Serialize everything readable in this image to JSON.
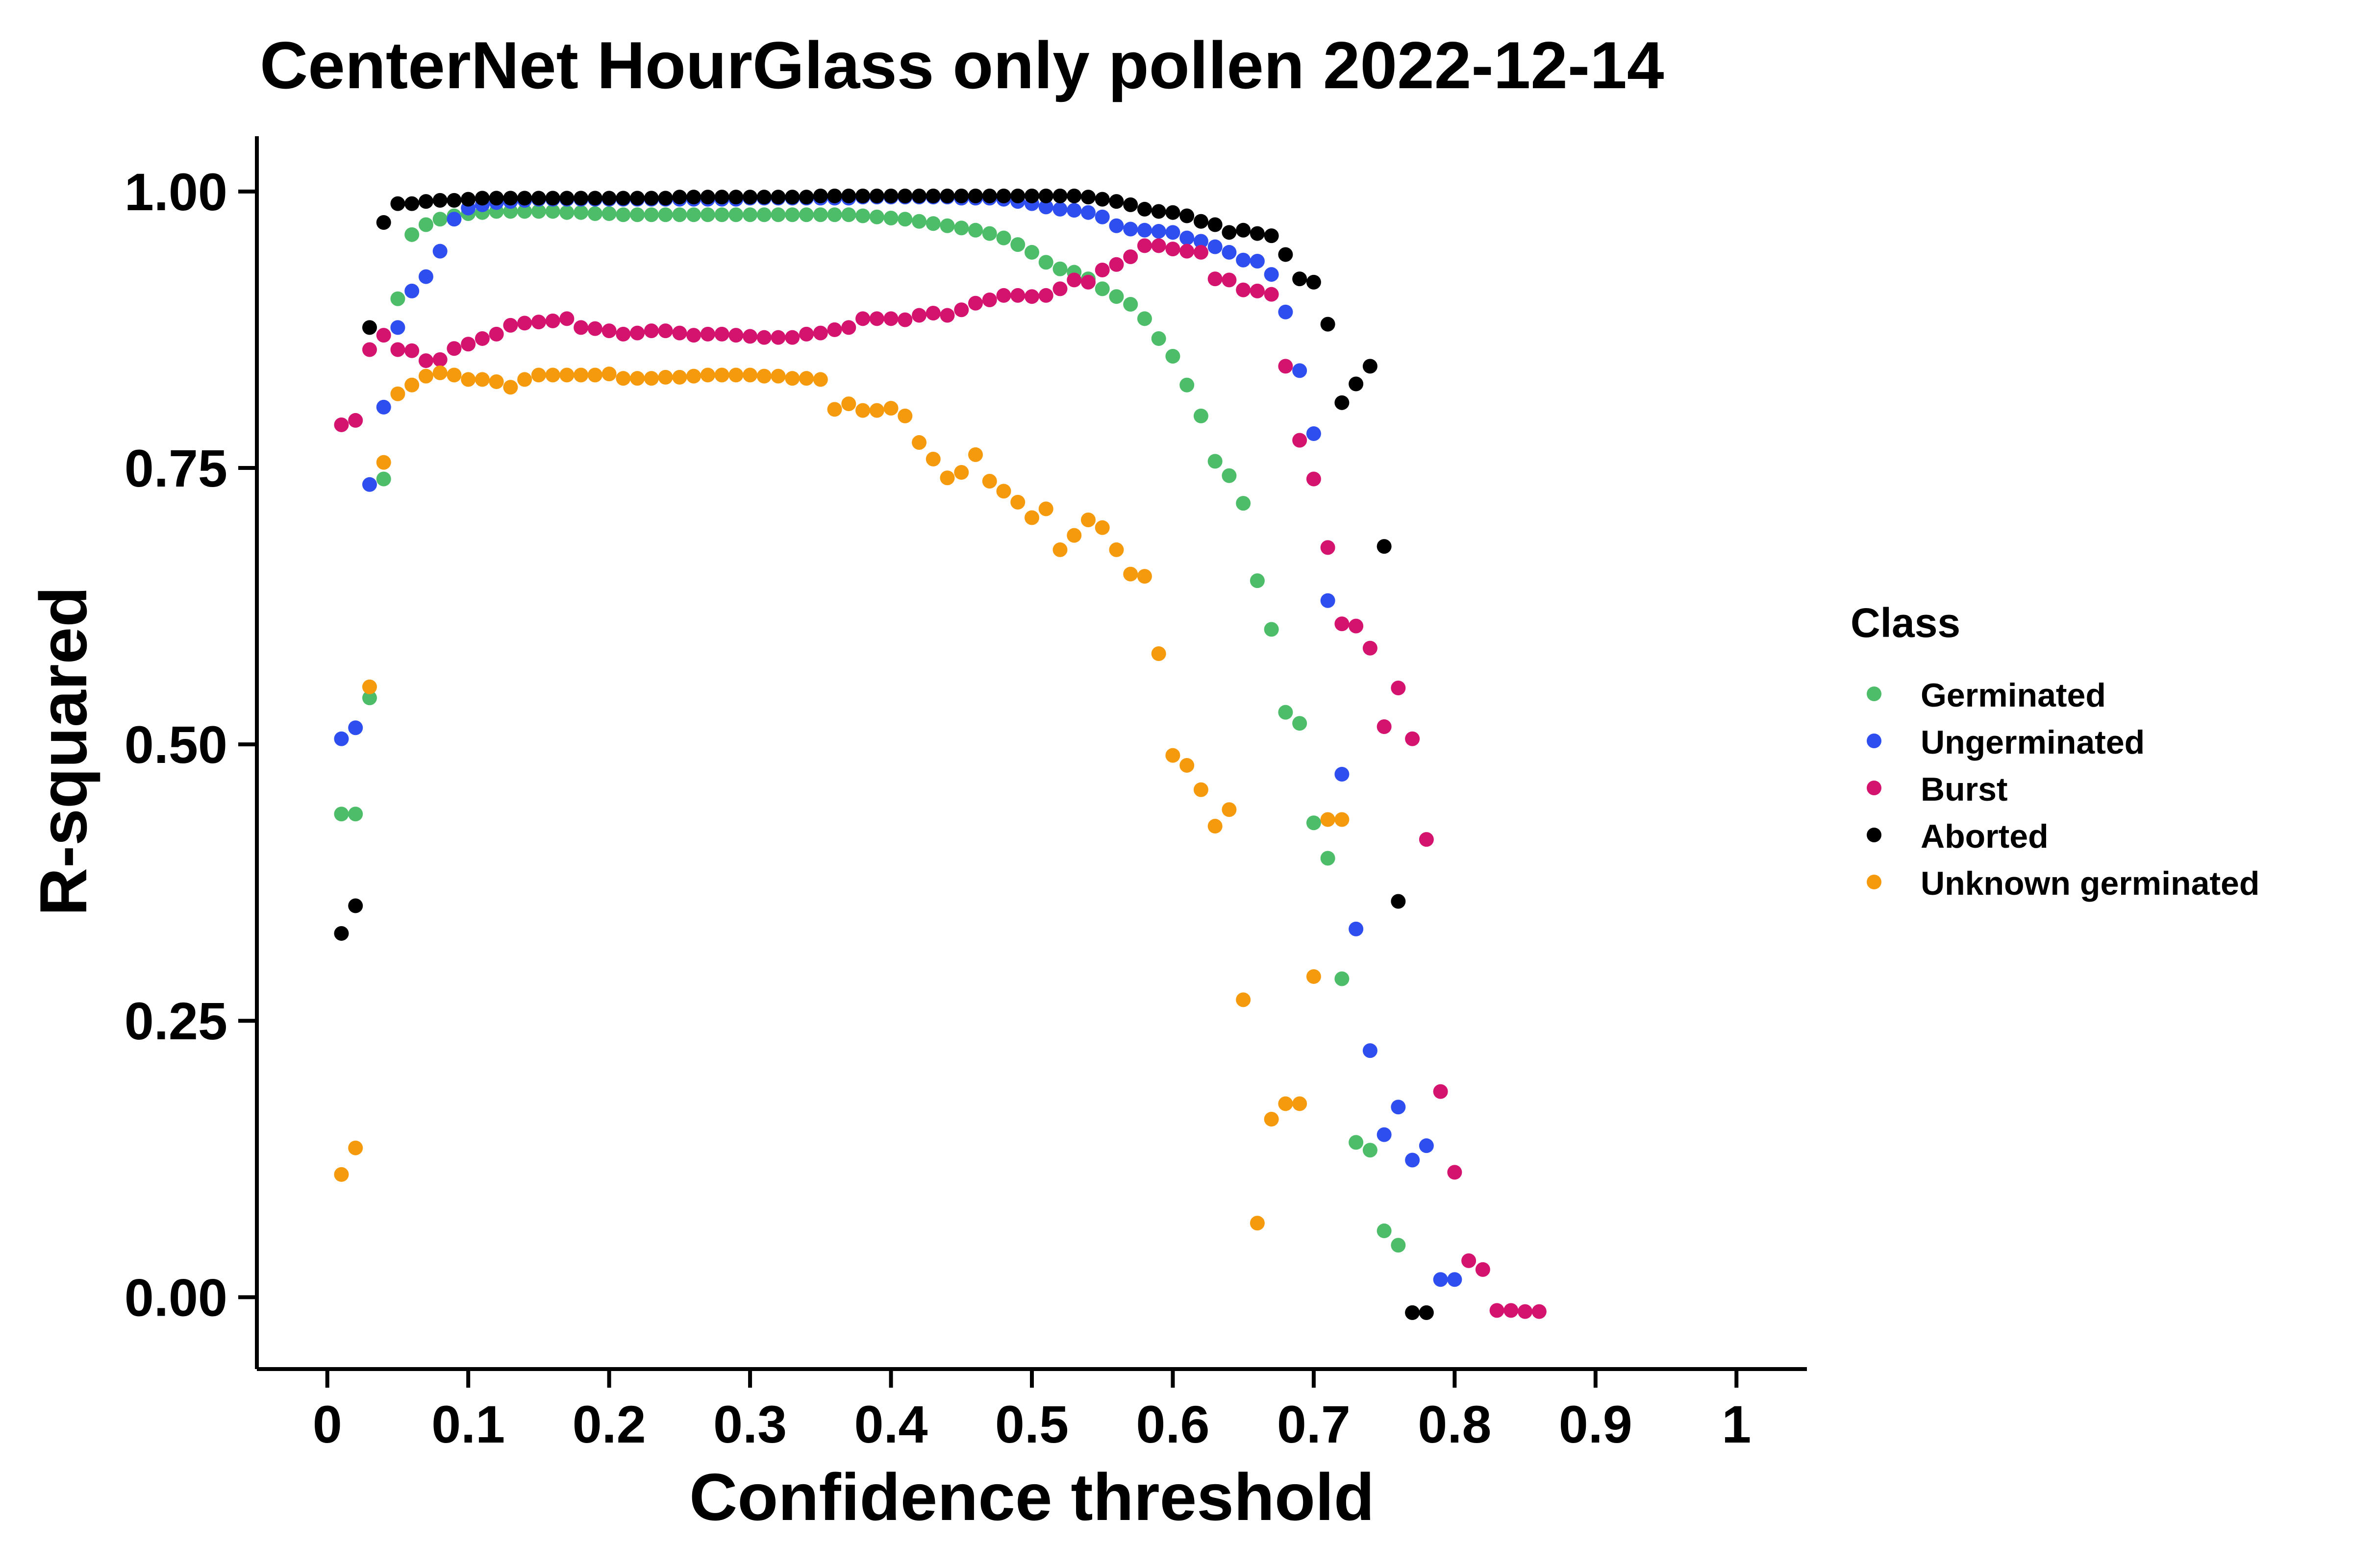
{
  "chart_data": {
    "type": "scatter",
    "title": "CenterNet HourGlass only pollen 2022-12-14",
    "xlabel": "Confidence threshold",
    "ylabel": "R-squared",
    "xlim": [
      -0.05,
      1.05
    ],
    "ylim": [
      -0.065,
      1.05
    ],
    "xticks": [
      0,
      0.1,
      0.2,
      0.3,
      0.4,
      0.5,
      0.6,
      0.7,
      0.8,
      0.9,
      1
    ],
    "xtick_labels": [
      "0",
      "0.1",
      "0.2",
      "0.3",
      "0.4",
      "0.5",
      "0.6",
      "0.7",
      "0.8",
      "0.9",
      "1"
    ],
    "yticks": [
      0,
      0.25,
      0.5,
      0.75,
      1
    ],
    "ytick_labels": [
      "0.00",
      "0.25",
      "0.50",
      "0.75",
      "1.00"
    ],
    "grid": false,
    "legend": {
      "title": "Class",
      "position": "right"
    },
    "series": [
      {
        "name": "Germinated",
        "color": "#4dbd6a",
        "x": [
          0.01,
          0.02,
          0.03,
          0.04,
          0.05,
          0.06,
          0.07,
          0.08,
          0.09,
          0.1,
          0.11,
          0.12,
          0.13,
          0.14,
          0.15,
          0.16,
          0.17,
          0.18,
          0.19,
          0.2,
          0.21,
          0.22,
          0.23,
          0.24,
          0.25,
          0.26,
          0.27,
          0.28,
          0.29,
          0.3,
          0.31,
          0.32,
          0.33,
          0.34,
          0.35,
          0.36,
          0.37,
          0.38,
          0.39,
          0.4,
          0.41,
          0.42,
          0.43,
          0.44,
          0.45,
          0.46,
          0.47,
          0.48,
          0.49,
          0.5,
          0.51,
          0.52,
          0.53,
          0.54,
          0.55,
          0.56,
          0.57,
          0.58,
          0.59,
          0.6,
          0.61,
          0.62,
          0.63,
          0.64,
          0.65,
          0.66,
          0.67,
          0.68,
          0.69,
          0.7,
          0.71,
          0.72,
          0.73,
          0.74,
          0.75,
          0.76,
          0.77
        ],
        "y": [
          0.437,
          0.437,
          0.542,
          0.74,
          0.903,
          0.961,
          0.97,
          0.975,
          0.978,
          0.98,
          0.981,
          0.982,
          0.982,
          0.982,
          0.982,
          0.982,
          0.981,
          0.981,
          0.98,
          0.98,
          0.979,
          0.979,
          0.979,
          0.979,
          0.979,
          0.979,
          0.979,
          0.979,
          0.979,
          0.979,
          0.979,
          0.979,
          0.979,
          0.979,
          0.979,
          0.979,
          0.979,
          0.978,
          0.977,
          0.976,
          0.975,
          0.973,
          0.971,
          0.969,
          0.967,
          0.965,
          0.962,
          0.958,
          0.952,
          0.945,
          0.936,
          0.93,
          0.927,
          0.921,
          0.912,
          0.905,
          0.898,
          0.885,
          0.867,
          0.851,
          0.825,
          0.797,
          0.756,
          0.743,
          0.718,
          0.648,
          0.604,
          0.529,
          0.519,
          0.429,
          0.397,
          0.288,
          0.14,
          0.133,
          0.06,
          0.047,
          -0.014
        ]
      },
      {
        "name": "Ungerminated",
        "color": "#2f4ef0",
        "x": [
          0.01,
          0.02,
          0.03,
          0.04,
          0.05,
          0.06,
          0.07,
          0.08,
          0.09,
          0.1,
          0.11,
          0.12,
          0.13,
          0.14,
          0.15,
          0.16,
          0.17,
          0.18,
          0.19,
          0.2,
          0.21,
          0.22,
          0.23,
          0.24,
          0.25,
          0.26,
          0.27,
          0.28,
          0.29,
          0.3,
          0.31,
          0.32,
          0.33,
          0.34,
          0.35,
          0.36,
          0.37,
          0.38,
          0.39,
          0.4,
          0.41,
          0.42,
          0.43,
          0.44,
          0.45,
          0.46,
          0.47,
          0.48,
          0.49,
          0.5,
          0.51,
          0.52,
          0.53,
          0.54,
          0.55,
          0.56,
          0.57,
          0.58,
          0.59,
          0.6,
          0.61,
          0.62,
          0.63,
          0.64,
          0.65,
          0.66,
          0.67,
          0.68,
          0.69,
          0.7,
          0.71,
          0.72,
          0.73,
          0.74,
          0.75,
          0.76,
          0.77,
          0.78,
          0.79,
          0.8
        ],
        "y": [
          0.505,
          0.515,
          0.735,
          0.805,
          0.877,
          0.91,
          0.923,
          0.946,
          0.975,
          0.985,
          0.988,
          0.99,
          0.991,
          0.992,
          0.993,
          0.993,
          0.993,
          0.993,
          0.993,
          0.993,
          0.993,
          0.993,
          0.993,
          0.993,
          0.993,
          0.993,
          0.993,
          0.993,
          0.993,
          0.994,
          0.994,
          0.994,
          0.994,
          0.994,
          0.994,
          0.994,
          0.994,
          0.995,
          0.995,
          0.995,
          0.995,
          0.995,
          0.995,
          0.995,
          0.994,
          0.994,
          0.994,
          0.993,
          0.991,
          0.989,
          0.986,
          0.984,
          0.983,
          0.981,
          0.977,
          0.969,
          0.966,
          0.965,
          0.964,
          0.963,
          0.958,
          0.955,
          0.95,
          0.945,
          0.938,
          0.937,
          0.925,
          0.891,
          0.838,
          0.781,
          0.63,
          0.473,
          0.333,
          0.223,
          0.147,
          0.172,
          0.124,
          0.137,
          0.016,
          0.016
        ]
      },
      {
        "name": "Burst",
        "color": "#d4136f",
        "x": [
          0.01,
          0.02,
          0.03,
          0.04,
          0.05,
          0.06,
          0.07,
          0.08,
          0.09,
          0.1,
          0.11,
          0.12,
          0.13,
          0.14,
          0.15,
          0.16,
          0.17,
          0.18,
          0.19,
          0.2,
          0.21,
          0.22,
          0.23,
          0.24,
          0.25,
          0.26,
          0.27,
          0.28,
          0.29,
          0.3,
          0.31,
          0.32,
          0.33,
          0.34,
          0.35,
          0.36,
          0.37,
          0.38,
          0.39,
          0.4,
          0.41,
          0.42,
          0.43,
          0.44,
          0.45,
          0.46,
          0.47,
          0.48,
          0.49,
          0.5,
          0.51,
          0.52,
          0.53,
          0.54,
          0.55,
          0.56,
          0.57,
          0.58,
          0.59,
          0.6,
          0.61,
          0.62,
          0.63,
          0.64,
          0.65,
          0.66,
          0.67,
          0.68,
          0.69,
          0.7,
          0.71,
          0.72,
          0.73,
          0.74,
          0.75,
          0.76,
          0.77,
          0.78,
          0.79,
          0.8,
          0.81,
          0.82,
          0.83,
          0.84,
          0.85,
          0.86
        ],
        "y": [
          0.789,
          0.793,
          0.857,
          0.87,
          0.857,
          0.856,
          0.847,
          0.848,
          0.858,
          0.862,
          0.867,
          0.871,
          0.879,
          0.881,
          0.882,
          0.883,
          0.885,
          0.877,
          0.876,
          0.874,
          0.871,
          0.872,
          0.874,
          0.874,
          0.872,
          0.87,
          0.871,
          0.871,
          0.87,
          0.869,
          0.868,
          0.868,
          0.868,
          0.871,
          0.872,
          0.875,
          0.877,
          0.885,
          0.885,
          0.885,
          0.884,
          0.888,
          0.89,
          0.888,
          0.893,
          0.899,
          0.902,
          0.906,
          0.906,
          0.905,
          0.906,
          0.912,
          0.92,
          0.918,
          0.929,
          0.934,
          0.941,
          0.951,
          0.951,
          0.948,
          0.946,
          0.945,
          0.921,
          0.92,
          0.911,
          0.91,
          0.907,
          0.842,
          0.775,
          0.74,
          0.678,
          0.609,
          0.607,
          0.587,
          0.516,
          0.551,
          0.505,
          0.414,
          0.186,
          0.113,
          0.033,
          0.025,
          -0.012,
          -0.012,
          -0.013,
          -0.013
        ]
      },
      {
        "name": "Aborted",
        "color": "#000000",
        "x": [
          0.01,
          0.02,
          0.03,
          0.04,
          0.05,
          0.06,
          0.07,
          0.08,
          0.09,
          0.1,
          0.11,
          0.12,
          0.13,
          0.14,
          0.15,
          0.16,
          0.17,
          0.18,
          0.19,
          0.2,
          0.21,
          0.22,
          0.23,
          0.24,
          0.25,
          0.26,
          0.27,
          0.28,
          0.29,
          0.3,
          0.31,
          0.32,
          0.33,
          0.34,
          0.35,
          0.36,
          0.37,
          0.38,
          0.39,
          0.4,
          0.41,
          0.42,
          0.43,
          0.44,
          0.45,
          0.46,
          0.47,
          0.48,
          0.49,
          0.5,
          0.51,
          0.52,
          0.53,
          0.54,
          0.55,
          0.56,
          0.57,
          0.58,
          0.59,
          0.6,
          0.61,
          0.62,
          0.63,
          0.64,
          0.65,
          0.66,
          0.67,
          0.68,
          0.69,
          0.7,
          0.71,
          0.72,
          0.73,
          0.74,
          0.75,
          0.76,
          0.77,
          0.78
        ],
        "y": [
          0.329,
          0.354,
          0.877,
          0.972,
          0.989,
          0.989,
          0.991,
          0.992,
          0.992,
          0.993,
          0.994,
          0.994,
          0.994,
          0.994,
          0.994,
          0.994,
          0.994,
          0.994,
          0.994,
          0.994,
          0.994,
          0.994,
          0.994,
          0.994,
          0.995,
          0.995,
          0.995,
          0.995,
          0.995,
          0.995,
          0.995,
          0.995,
          0.995,
          0.995,
          0.996,
          0.996,
          0.996,
          0.996,
          0.996,
          0.996,
          0.996,
          0.996,
          0.996,
          0.996,
          0.996,
          0.996,
          0.996,
          0.996,
          0.996,
          0.996,
          0.996,
          0.996,
          0.996,
          0.995,
          0.993,
          0.991,
          0.988,
          0.984,
          0.982,
          0.981,
          0.978,
          0.973,
          0.97,
          0.963,
          0.965,
          0.962,
          0.96,
          0.943,
          0.921,
          0.918,
          0.88,
          0.809,
          0.826,
          0.842,
          0.679,
          0.358,
          -0.014,
          -0.014
        ]
      },
      {
        "name": "Unknown germinated",
        "color": "#f59a0d",
        "x": [
          0.01,
          0.02,
          0.03,
          0.04,
          0.05,
          0.06,
          0.07,
          0.08,
          0.09,
          0.1,
          0.11,
          0.12,
          0.13,
          0.14,
          0.15,
          0.16,
          0.17,
          0.18,
          0.19,
          0.2,
          0.21,
          0.22,
          0.23,
          0.24,
          0.25,
          0.26,
          0.27,
          0.28,
          0.29,
          0.3,
          0.31,
          0.32,
          0.33,
          0.34,
          0.35,
          0.36,
          0.37,
          0.38,
          0.39,
          0.4,
          0.41,
          0.42,
          0.43,
          0.44,
          0.45,
          0.46,
          0.47,
          0.48,
          0.49,
          0.5,
          0.51,
          0.52,
          0.53,
          0.54,
          0.55,
          0.56,
          0.57,
          0.58,
          0.59,
          0.6,
          0.61,
          0.62,
          0.63,
          0.64,
          0.65,
          0.66,
          0.67,
          0.68,
          0.69,
          0.7,
          0.71,
          0.72
        ],
        "y": [
          0.111,
          0.135,
          0.552,
          0.755,
          0.817,
          0.825,
          0.833,
          0.836,
          0.834,
          0.83,
          0.83,
          0.828,
          0.823,
          0.83,
          0.834,
          0.834,
          0.834,
          0.834,
          0.834,
          0.835,
          0.831,
          0.831,
          0.831,
          0.832,
          0.832,
          0.833,
          0.834,
          0.834,
          0.834,
          0.834,
          0.833,
          0.833,
          0.831,
          0.831,
          0.83,
          0.803,
          0.808,
          0.802,
          0.802,
          0.804,
          0.797,
          0.773,
          0.758,
          0.741,
          0.746,
          0.762,
          0.738,
          0.729,
          0.719,
          0.705,
          0.713,
          0.676,
          0.689,
          0.703,
          0.696,
          0.676,
          0.654,
          0.652,
          0.582,
          0.49,
          0.481,
          0.459,
          0.426,
          0.441,
          0.269,
          0.067,
          0.161,
          0.175,
          0.175,
          0.29,
          0.432,
          0.432
        ]
      }
    ]
  }
}
